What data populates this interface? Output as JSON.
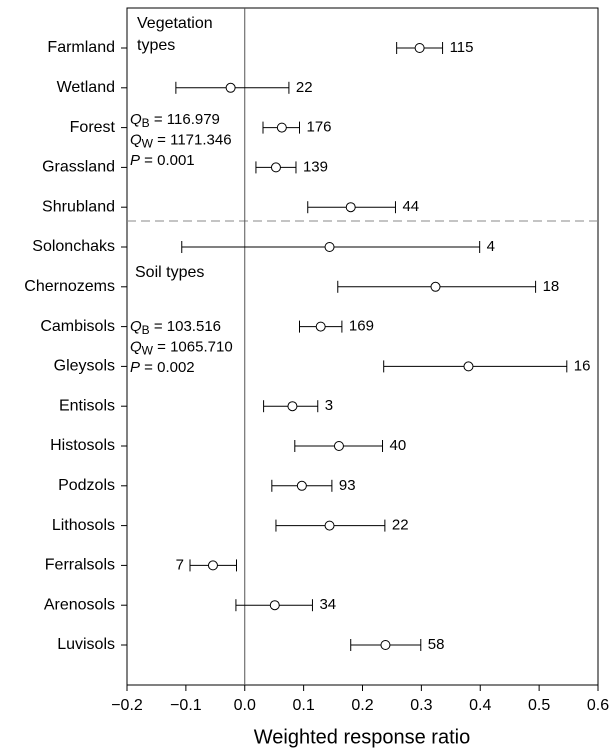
{
  "chart_data": {
    "type": "forest",
    "xlabel": "Weighted response ratio",
    "categories": [
      "Farmland",
      "Wetland",
      "Forest",
      "Grassland",
      "Shrubland",
      "Solonchaks",
      "Chernozems",
      "Cambisols",
      "Gleysols",
      "Entisols",
      "Histosols",
      "Podzols",
      "Lithosols",
      "Ferralsols",
      "Arenosols",
      "Luvisols"
    ],
    "values": [
      0.297,
      -0.024,
      0.063,
      0.053,
      0.18,
      0.144,
      0.324,
      0.129,
      0.38,
      0.081,
      0.16,
      0.097,
      0.144,
      -0.054,
      0.051,
      0.239
    ],
    "lower": [
      0.258,
      -0.117,
      0.031,
      0.019,
      0.107,
      -0.107,
      0.158,
      0.093,
      0.236,
      0.032,
      0.085,
      0.046,
      0.053,
      -0.093,
      -0.015,
      0.18
    ],
    "upper": [
      0.336,
      0.075,
      0.093,
      0.087,
      0.256,
      0.399,
      0.494,
      0.165,
      0.547,
      0.124,
      0.234,
      0.148,
      0.238,
      -0.014,
      0.115,
      0.299
    ],
    "n": [
      115,
      22,
      176,
      139,
      44,
      4,
      18,
      169,
      16,
      3,
      40,
      93,
      22,
      7,
      34,
      58
    ],
    "xlim": [
      -0.2,
      0.6
    ],
    "xticks": [
      {
        "value": -0.2,
        "label": "−0.2"
      },
      {
        "value": -0.1,
        "label": "−0.1"
      },
      {
        "value": 0,
        "label": "0.0"
      },
      0.1,
      0.2,
      0.3,
      0.4,
      0.5,
      0.6
    ],
    "annotations": [
      "Vegetation types",
      "Soil types"
    ],
    "stats": [
      [
        {
          "symbol": "Q",
          "sub": "B",
          "text": " = 116.979"
        },
        {
          "symbol": "Q",
          "sub": "W",
          "text": " = 1171.346"
        },
        {
          "symbol": "P",
          "text": " = 0.001"
        }
      ],
      [
        {
          "symbol": "Q",
          "sub": "B",
          "text": " = 103.516"
        },
        {
          "symbol": "Q",
          "sub": "W",
          "text": " = 1065.710"
        },
        {
          "symbol": "P",
          "text": " = 0.002"
        }
      ]
    ]
  }
}
